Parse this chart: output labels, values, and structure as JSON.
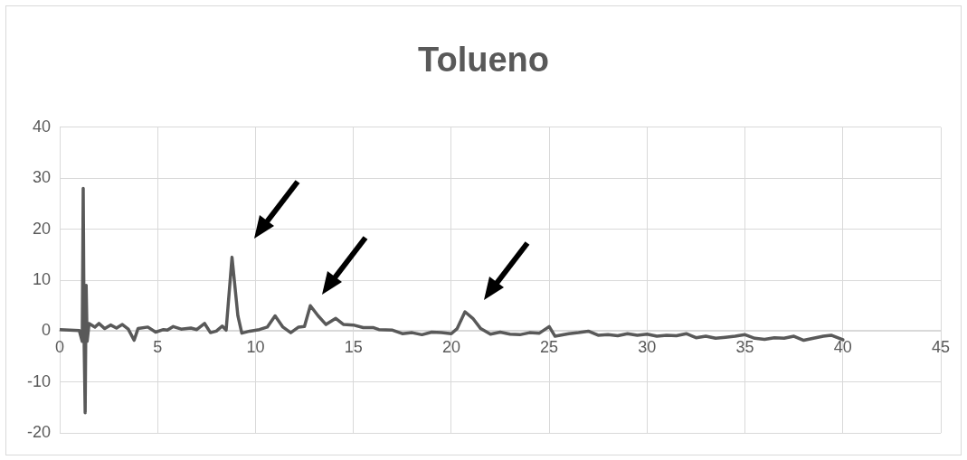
{
  "chart_data": {
    "type": "line",
    "title": "Tolueno",
    "x": [
      0,
      0.5,
      1.0,
      1.15,
      1.2,
      1.25,
      1.3,
      1.35,
      1.4,
      1.5,
      1.8,
      2.0,
      2.3,
      2.6,
      2.9,
      3.2,
      3.5,
      3.8,
      4.0,
      4.5,
      4.9,
      5.3,
      5.5,
      5.8,
      6.2,
      6.7,
      7.0,
      7.4,
      7.7,
      8.0,
      8.3,
      8.5,
      8.8,
      9.1,
      9.3,
      9.7,
      10.2,
      10.6,
      11.0,
      11.4,
      11.8,
      12.2,
      12.5,
      12.8,
      13.2,
      13.6,
      14.1,
      14.5,
      15,
      15.5,
      16,
      16.3,
      17,
      17.5,
      18,
      18.5,
      19,
      19.5,
      20.0,
      20.3,
      20.7,
      21.1,
      21.5,
      22,
      22.5,
      23,
      23.5,
      24,
      24.5,
      25,
      25.3,
      26,
      26.5,
      27,
      27.5,
      28,
      28.5,
      29,
      29.5,
      30,
      30.5,
      31,
      31.5,
      32,
      32.5,
      33,
      33.5,
      34,
      34.5,
      35,
      35.5,
      36,
      36.5,
      37,
      37.5,
      38,
      38.5,
      39,
      39.4,
      40
    ],
    "series": [
      {
        "color": "#595959",
        "values": [
          0.3,
          0.2,
          0.1,
          -2,
          28,
          -3,
          -16,
          9,
          -2,
          1.5,
          0.8,
          1.5,
          0.5,
          1.2,
          0.6,
          1.3,
          0.4,
          -1.8,
          0.5,
          0.8,
          -0.2,
          0.3,
          0.2,
          0.9,
          0.4,
          0.6,
          0.3,
          1.5,
          -0.3,
          0,
          1.0,
          0.2,
          14.5,
          3,
          -0.4,
          0,
          0.3,
          0.8,
          3,
          0.8,
          -0.3,
          0.8,
          0.9,
          5,
          3,
          1.3,
          2.5,
          1.3,
          1.2,
          0.7,
          0.7,
          0.3,
          0.2,
          -0.5,
          -0.3,
          -0.7,
          -0.2,
          -0.3,
          -0.5,
          0.5,
          3.8,
          2.5,
          0.5,
          -0.6,
          -0.2,
          -0.6,
          -0.7,
          -0.3,
          -0.4,
          0.9,
          -1.0,
          -0.5,
          -0.3,
          0.0,
          -0.8,
          -0.7,
          -0.9,
          -0.5,
          -0.8,
          -0.6,
          -1.0,
          -0.8,
          -0.9,
          -0.5,
          -1.3,
          -1.0,
          -1.4,
          -1.2,
          -1.0,
          -0.7,
          -1.4,
          -1.6,
          -1.3,
          -1.4,
          -1.0,
          -1.8,
          -1.4,
          -1.0,
          -0.8,
          -1.7
        ]
      }
    ],
    "xlim": [
      0,
      45
    ],
    "xticks": [
      0,
      5,
      10,
      15,
      20,
      25,
      30,
      35,
      40,
      45
    ],
    "ylim": [
      -20,
      40
    ],
    "yticks": [
      -20,
      -10,
      0,
      10,
      20,
      30,
      40
    ],
    "grid": true,
    "marker": "none",
    "line_style": "solid"
  }
}
